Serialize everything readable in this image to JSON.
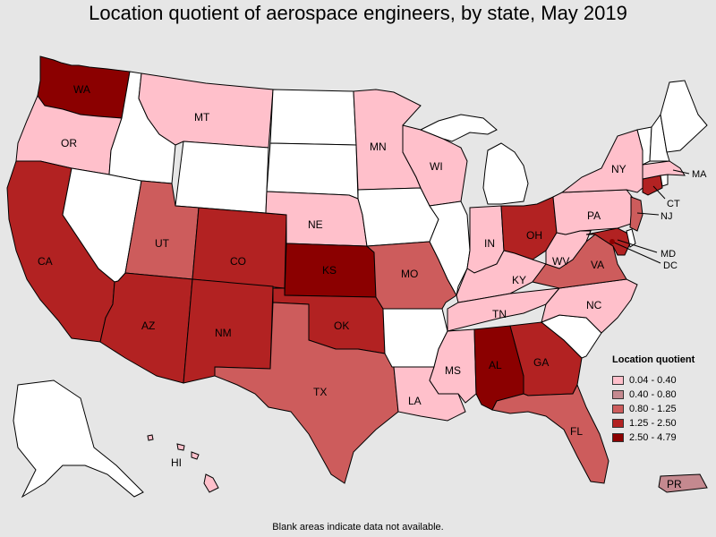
{
  "title": "Location quotient of aerospace engineers, by state, May 2019",
  "footnote": "Blank areas indicate data not available.",
  "legend": {
    "title": "Location quotient",
    "items": [
      {
        "label": "0.04 - 0.40",
        "color": "#ffc0cb"
      },
      {
        "label": "0.40 - 0.80",
        "color": "#c4898f"
      },
      {
        "label": "0.80 - 1.25",
        "color": "#cd5c5c"
      },
      {
        "label": "1.25 - 2.50",
        "color": "#b22222"
      },
      {
        "label": "2.50 - 4.79",
        "color": "#8b0000"
      }
    ]
  },
  "colors": {
    "background": "#e6e6e6",
    "no_data": "#ffffff"
  },
  "states": {
    "WA": {
      "label": "WA",
      "class": 5
    },
    "OR": {
      "label": "OR",
      "class": 1
    },
    "CA": {
      "label": "CA",
      "class": 4
    },
    "MT": {
      "label": "MT",
      "class": 1
    },
    "UT": {
      "label": "UT",
      "class": 3
    },
    "CO": {
      "label": "CO",
      "class": 4
    },
    "AZ": {
      "label": "AZ",
      "class": 4
    },
    "NM": {
      "label": "NM",
      "class": 4
    },
    "NE": {
      "label": "NE",
      "class": 1
    },
    "KS": {
      "label": "KS",
      "class": 5
    },
    "OK": {
      "label": "OK",
      "class": 4
    },
    "TX": {
      "label": "TX",
      "class": 3
    },
    "MN": {
      "label": "MN",
      "class": 1
    },
    "WI": {
      "label": "WI",
      "class": 1
    },
    "MO": {
      "label": "MO",
      "class": 3
    },
    "IN": {
      "label": "IN",
      "class": 1
    },
    "OH": {
      "label": "OH",
      "class": 4
    },
    "KY": {
      "label": "KY",
      "class": 1
    },
    "TN": {
      "label": "TN",
      "class": 1
    },
    "MS": {
      "label": "MS",
      "class": 1
    },
    "AL": {
      "label": "AL",
      "class": 5
    },
    "GA": {
      "label": "GA",
      "class": 4
    },
    "FL": {
      "label": "FL",
      "class": 3
    },
    "LA": {
      "label": "LA",
      "class": 1
    },
    "NC": {
      "label": "NC",
      "class": 1
    },
    "VA": {
      "label": "VA",
      "class": 3
    },
    "WV": {
      "label": "WV",
      "class": 1
    },
    "PA": {
      "label": "PA",
      "class": 1
    },
    "NY": {
      "label": "NY",
      "class": 1
    },
    "NJ": {
      "label": "NJ",
      "class": 3
    },
    "CT": {
      "label": "CT",
      "class": 4
    },
    "MA": {
      "label": "MA",
      "class": 1
    },
    "MD": {
      "label": "MD",
      "class": 4
    },
    "DC": {
      "label": "DC",
      "class": 5
    },
    "HI": {
      "label": "HI",
      "class": 1
    },
    "PR": {
      "label": "PR",
      "class": 2
    }
  }
}
